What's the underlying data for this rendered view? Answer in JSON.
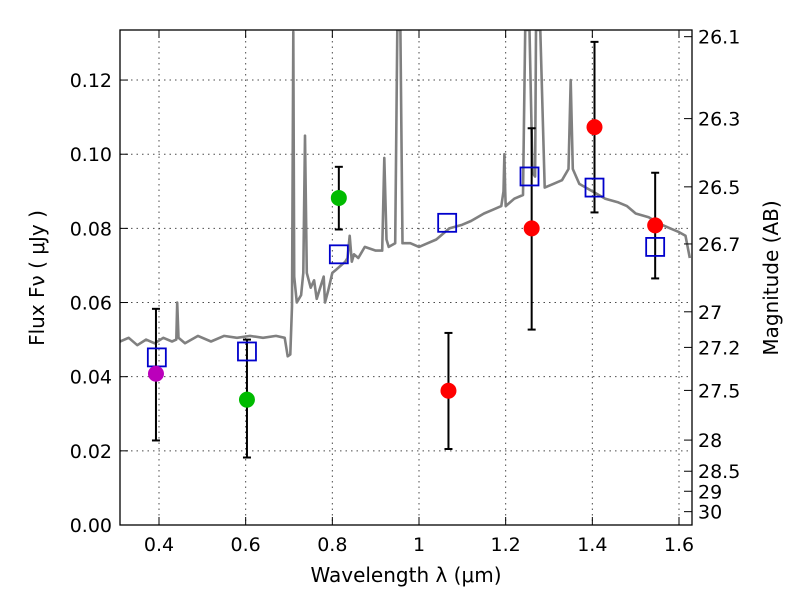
{
  "chart_data": {
    "type": "scatter",
    "xlabel": "Wavelength  λ (μm)",
    "ylabel": "Flux  Fν ( μJy )",
    "ylabel_right": "Magnitude (AB)",
    "xlim": [
      0.31,
      1.63
    ],
    "ylim": [
      0.0,
      0.1335
    ],
    "grid": true,
    "x_ticks": [
      0.4,
      0.6,
      0.8,
      1.0,
      1.2,
      1.4,
      1.6
    ],
    "x_tick_labels": [
      "0.4",
      "0.6",
      "0.8",
      "1",
      "1.2",
      "1.4",
      "1.6"
    ],
    "y_ticks": [
      0.0,
      0.02,
      0.04,
      0.06,
      0.08,
      0.1,
      0.12
    ],
    "y_tick_labels": [
      "0.00",
      "0.02",
      "0.04",
      "0.06",
      "0.08",
      "0.10",
      "0.12"
    ],
    "right_ticks": [
      {
        "label": "26.1",
        "flux": 0.1317
      },
      {
        "label": "26.3",
        "flux": 0.1096
      },
      {
        "label": "26.5",
        "flux": 0.0912
      },
      {
        "label": "26.7",
        "flux": 0.0758
      },
      {
        "label": "27",
        "flux": 0.0575
      },
      {
        "label": "27.2",
        "flux": 0.0479
      },
      {
        "label": "27.5",
        "flux": 0.0363
      },
      {
        "label": "28",
        "flux": 0.0229
      },
      {
        "label": "28.5",
        "flux": 0.0145
      },
      {
        "label": "29",
        "flux": 0.0091
      },
      {
        "label": "30",
        "flux": 0.0036
      }
    ],
    "series": [
      {
        "kind": "model_spectrum",
        "color": "#808080",
        "points": [
          [
            0.31,
            0.0495
          ],
          [
            0.33,
            0.0505
          ],
          [
            0.35,
            0.0485
          ],
          [
            0.37,
            0.05
          ],
          [
            0.39,
            0.049
          ],
          [
            0.41,
            0.0505
          ],
          [
            0.43,
            0.0495
          ],
          [
            0.44,
            0.05
          ],
          [
            0.442,
            0.06
          ],
          [
            0.445,
            0.0505
          ],
          [
            0.46,
            0.049
          ],
          [
            0.49,
            0.051
          ],
          [
            0.52,
            0.0495
          ],
          [
            0.55,
            0.051
          ],
          [
            0.58,
            0.0505
          ],
          [
            0.61,
            0.051
          ],
          [
            0.64,
            0.0505
          ],
          [
            0.67,
            0.051
          ],
          [
            0.69,
            0.0505
          ],
          [
            0.697,
            0.0455
          ],
          [
            0.703,
            0.046
          ],
          [
            0.707,
            0.059
          ],
          [
            0.71,
            0.133
          ],
          [
            0.712,
            0.067
          ],
          [
            0.718,
            0.06
          ],
          [
            0.728,
            0.062
          ],
          [
            0.733,
            0.068
          ],
          [
            0.737,
            0.105
          ],
          [
            0.741,
            0.068
          ],
          [
            0.75,
            0.064
          ],
          [
            0.758,
            0.066
          ],
          [
            0.764,
            0.061
          ],
          [
            0.772,
            0.064
          ],
          [
            0.78,
            0.067
          ],
          [
            0.783,
            0.06
          ],
          [
            0.79,
            0.063
          ],
          [
            0.8,
            0.068
          ],
          [
            0.81,
            0.069
          ],
          [
            0.82,
            0.07
          ],
          [
            0.83,
            0.071
          ],
          [
            0.835,
            0.072
          ],
          [
            0.84,
            0.078
          ],
          [
            0.845,
            0.071
          ],
          [
            0.85,
            0.073
          ],
          [
            0.86,
            0.072
          ],
          [
            0.875,
            0.075
          ],
          [
            0.9,
            0.074
          ],
          [
            0.915,
            0.074
          ],
          [
            0.92,
            0.099
          ],
          [
            0.925,
            0.077
          ],
          [
            0.93,
            0.075
          ],
          [
            0.945,
            0.076
          ],
          [
            0.95,
            0.1335
          ],
          [
            0.957,
            0.1335
          ],
          [
            0.962,
            0.076
          ],
          [
            0.98,
            0.076
          ],
          [
            1.0,
            0.075
          ],
          [
            1.02,
            0.076
          ],
          [
            1.04,
            0.077
          ],
          [
            1.07,
            0.08
          ],
          [
            1.1,
            0.081
          ],
          [
            1.12,
            0.082
          ],
          [
            1.15,
            0.084
          ],
          [
            1.17,
            0.085
          ],
          [
            1.19,
            0.086
          ],
          [
            1.195,
            0.09
          ],
          [
            1.197,
            0.1
          ],
          [
            1.199,
            0.09
          ],
          [
            1.2,
            0.086
          ],
          [
            1.22,
            0.088
          ],
          [
            1.24,
            0.089
          ],
          [
            1.245,
            0.1335
          ],
          [
            1.255,
            0.1335
          ],
          [
            1.262,
            0.095
          ],
          [
            1.268,
            0.094
          ],
          [
            1.27,
            0.1335
          ],
          [
            1.28,
            0.1335
          ],
          [
            1.29,
            0.091
          ],
          [
            1.31,
            0.092
          ],
          [
            1.33,
            0.093
          ],
          [
            1.345,
            0.096
          ],
          [
            1.35,
            0.12
          ],
          [
            1.355,
            0.096
          ],
          [
            1.37,
            0.092
          ],
          [
            1.4,
            0.09
          ],
          [
            1.43,
            0.088
          ],
          [
            1.46,
            0.087
          ],
          [
            1.48,
            0.086
          ],
          [
            1.5,
            0.084
          ],
          [
            1.53,
            0.083
          ],
          [
            1.56,
            0.081
          ],
          [
            1.58,
            0.08
          ],
          [
            1.6,
            0.079
          ],
          [
            1.615,
            0.078
          ],
          [
            1.625,
            0.072
          ]
        ]
      },
      {
        "kind": "model_points",
        "marker": "open-square",
        "color": "#0000cc",
        "points": [
          [
            0.395,
            0.0452
          ],
          [
            0.603,
            0.0468
          ],
          [
            0.815,
            0.073
          ],
          [
            1.065,
            0.0815
          ],
          [
            1.255,
            0.094
          ],
          [
            1.405,
            0.091
          ],
          [
            1.545,
            0.075
          ]
        ]
      },
      {
        "kind": "observed",
        "marker": "filled-circle",
        "points": [
          {
            "x": 0.393,
            "y": 0.0408,
            "err_low": 0.0228,
            "err_high": 0.0583,
            "color": "#bb00bb"
          },
          {
            "x": 0.603,
            "y": 0.0338,
            "err_low": 0.0182,
            "err_high": 0.05,
            "color": "#00bb00"
          },
          {
            "x": 0.815,
            "y": 0.0882,
            "err_low": 0.0797,
            "err_high": 0.0966,
            "color": "#00bb00"
          },
          {
            "x": 1.068,
            "y": 0.0362,
            "err_low": 0.0205,
            "err_high": 0.0518,
            "color": "#ff0000"
          },
          {
            "x": 1.26,
            "y": 0.08,
            "err_low": 0.0527,
            "err_high": 0.107,
            "color": "#ff0000"
          },
          {
            "x": 1.405,
            "y": 0.1073,
            "err_low": 0.0843,
            "err_high": 0.1303,
            "color": "#ff0000"
          },
          {
            "x": 1.545,
            "y": 0.0808,
            "err_low": 0.0665,
            "err_high": 0.095,
            "color": "#ff0000"
          }
        ]
      }
    ]
  }
}
